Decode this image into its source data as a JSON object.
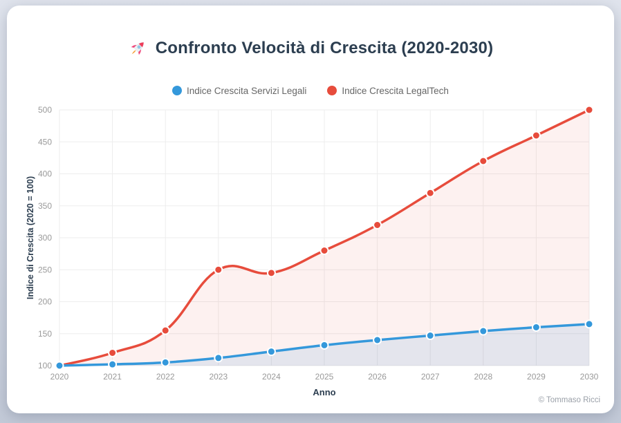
{
  "header": {
    "icon": "rocket"
  },
  "footer": {
    "credit": "© Tommaso Ricci"
  },
  "chart_data": {
    "type": "line",
    "title": "Confronto Velocità di Crescita (2020-2030)",
    "categories": [
      "2020",
      "2021",
      "2022",
      "2023",
      "2024",
      "2025",
      "2026",
      "2027",
      "2028",
      "2029",
      "2030"
    ],
    "series": [
      {
        "name": "Indice Crescita Servizi Legali",
        "color": "#3498db",
        "fill_color": "rgba(52,152,219,0.12)",
        "values": [
          100,
          102,
          105,
          112,
          122,
          132,
          140,
          147,
          154,
          160,
          165
        ]
      },
      {
        "name": "Indice Crescita LegalTech",
        "color": "#e74c3c",
        "fill_color": "rgba(231,76,60,0.08)",
        "values": [
          100,
          120,
          155,
          250,
          245,
          280,
          320,
          370,
          420,
          460,
          500
        ]
      }
    ],
    "xlabel": "Anno",
    "ylabel": "Indice di Crescita (2020 = 100)",
    "ylim": [
      100,
      500
    ],
    "y_ticks": [
      100,
      150,
      200,
      250,
      300,
      350,
      400,
      450,
      500
    ],
    "grid": true,
    "grid_color": "#ededed",
    "tick_color": "#999999",
    "axis_title_color": "#2c3e50",
    "legend_position": "top",
    "line_tension": 0.4,
    "fill": "origin"
  }
}
